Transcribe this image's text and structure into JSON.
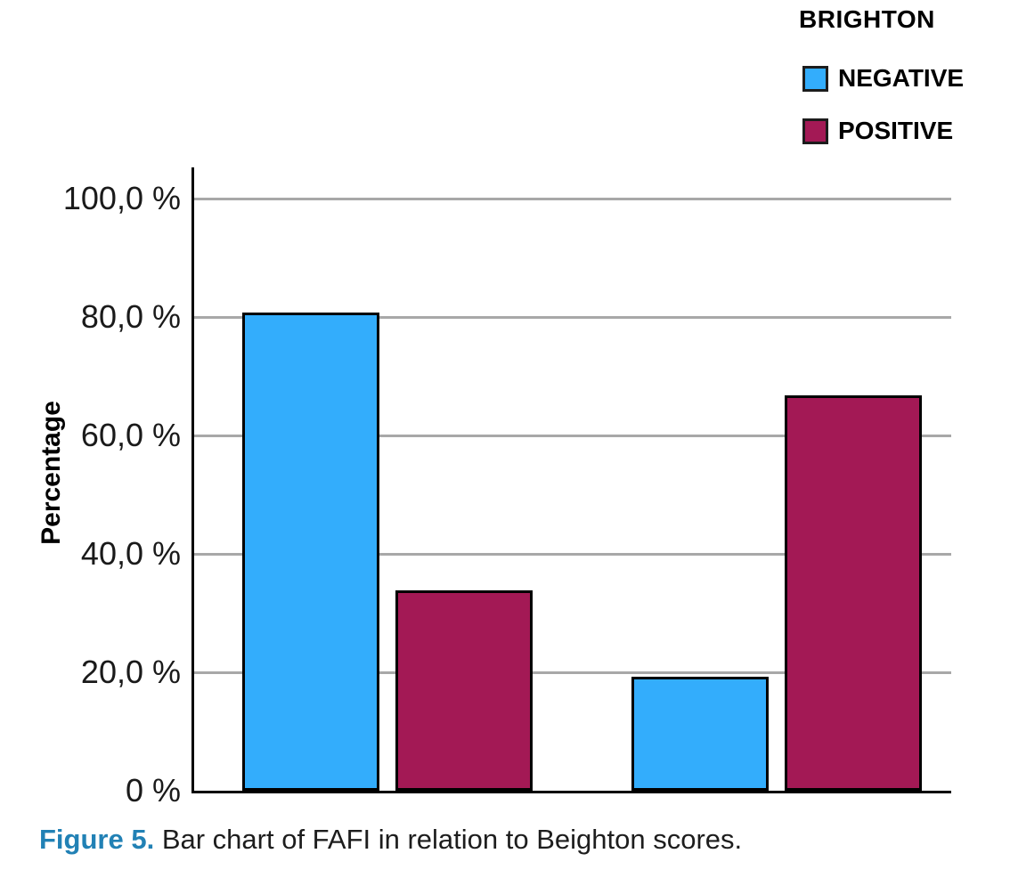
{
  "chart_data": {
    "type": "bar",
    "title": "",
    "xlabel": "",
    "ylabel": "Percentage",
    "legend_title": "BRIGHTON",
    "legend_position": "top-right",
    "grid": true,
    "ylim": [
      0,
      100
    ],
    "categories": [
      "",
      ""
    ],
    "yticks": [
      {
        "value": 0,
        "label": "0 %"
      },
      {
        "value": 20,
        "label": "20,0 %"
      },
      {
        "value": 40,
        "label": "40,0 %"
      },
      {
        "value": 60,
        "label": "60,0 %"
      },
      {
        "value": 80,
        "label": "80,0 %"
      },
      {
        "value": 100,
        "label": "100,0 %"
      }
    ],
    "series": [
      {
        "name": "NEGATIVE",
        "color": "#33ADFC",
        "values": [
          80.7,
          19.3
        ]
      },
      {
        "name": "POSITIVE",
        "color": "#A31955",
        "values": [
          33.8,
          66.7
        ]
      }
    ]
  },
  "figure": {
    "caption_label": "Figure 5.",
    "caption_text": " Bar chart of FAFI in relation to Beighton scores.",
    "caption_label_color": "#2181B5"
  },
  "colors": {
    "negative_bar": "#33ADFC",
    "positive_bar": "#A31955",
    "bar_border": "#000000",
    "gridline": "#A8A8A8",
    "axis": "#000000",
    "caption_accent": "#2181B5",
    "text": "#000000"
  }
}
